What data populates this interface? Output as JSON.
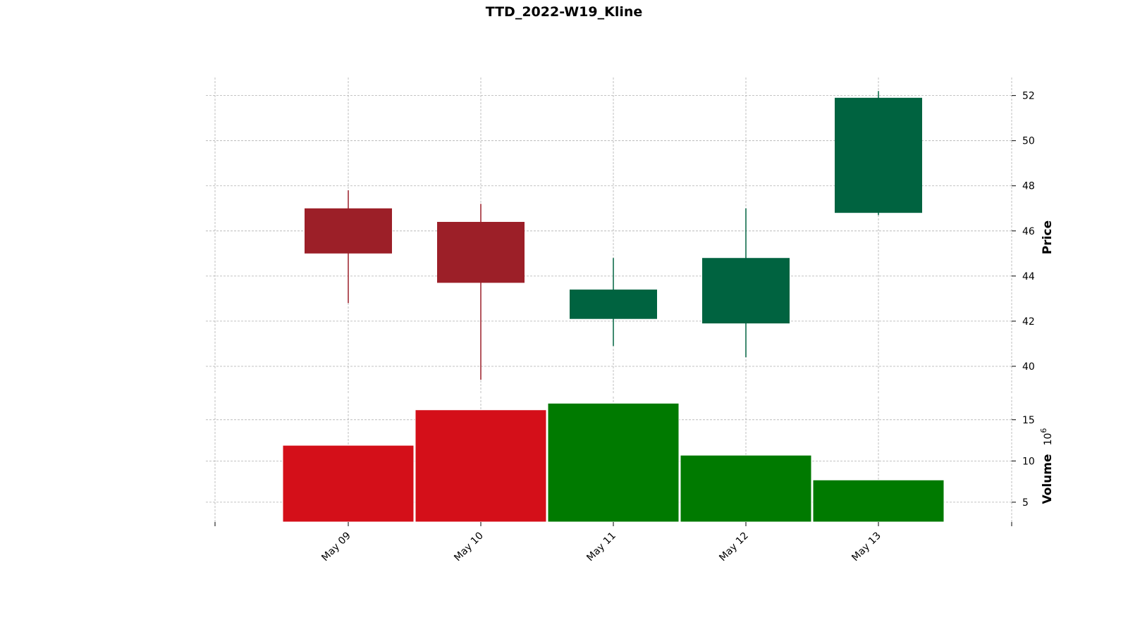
{
  "chart_data": {
    "type": "candlestick",
    "title": "TTD_2022-W19_Kline",
    "categories": [
      "May 09",
      "May 10",
      "May 11",
      "May 12",
      "May 13"
    ],
    "ohlc": [
      {
        "date": "May 09",
        "open": 47.0,
        "high": 47.8,
        "low": 42.8,
        "close": 45.0
      },
      {
        "date": "May 10",
        "open": 46.4,
        "high": 47.2,
        "low": 39.4,
        "close": 43.7
      },
      {
        "date": "May 11",
        "open": 42.1,
        "high": 44.8,
        "low": 40.9,
        "close": 43.4
      },
      {
        "date": "May 12",
        "open": 41.9,
        "high": 47.0,
        "low": 40.4,
        "close": 44.8
      },
      {
        "date": "May 13",
        "open": 46.8,
        "high": 52.2,
        "low": 46.7,
        "close": 51.9
      }
    ],
    "volume": [
      11.9,
      16.2,
      17.0,
      10.7,
      7.7
    ],
    "price_axis": {
      "label": "Price",
      "ylim": [
        38.75,
        52.8
      ],
      "ticks": [
        40,
        42,
        44,
        46,
        48,
        50,
        52
      ]
    },
    "volume_axis": {
      "label": "Volume",
      "multiplier": "10",
      "exponent": "6",
      "ylim": [
        2.6,
        17.8
      ],
      "ticks": [
        5,
        10,
        15
      ]
    },
    "colors": {
      "up_candle": "#006340",
      "down_candle": "#9c1f28",
      "up_volume": "#007a00",
      "down_volume": "#d40f19",
      "grid": "#b0b0b0"
    },
    "grid": true
  }
}
